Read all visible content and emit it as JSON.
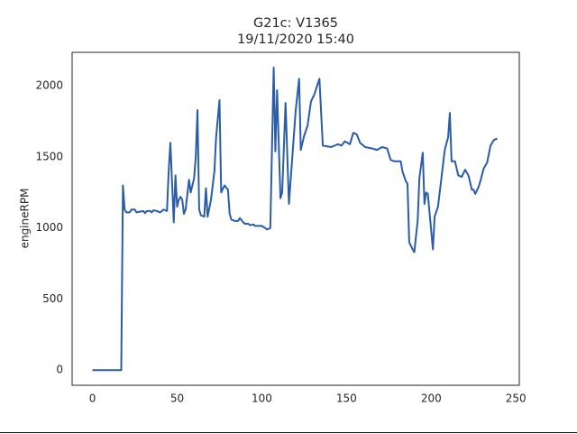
{
  "chart_data": {
    "type": "line",
    "title": "G21c: V1365",
    "subtitle": "19/11/2020 15:40",
    "y_label": "engineRPM",
    "color": "#2a5caa",
    "x": [
      0,
      17,
      18,
      19,
      20,
      22,
      23,
      25,
      26,
      28,
      30,
      31,
      32,
      34,
      35,
      36,
      38,
      40,
      42,
      44,
      45,
      46,
      48,
      49,
      50,
      51,
      52,
      53,
      54,
      55,
      57,
      58,
      60,
      61,
      62,
      63,
      64,
      66,
      67,
      68,
      70,
      72,
      73,
      75,
      76,
      78,
      80,
      81,
      82,
      84,
      86,
      87,
      89,
      90,
      92,
      93,
      95,
      96,
      100,
      102,
      103,
      105,
      107,
      108,
      109,
      111,
      112,
      114,
      116,
      118,
      120,
      122,
      123,
      125,
      127,
      129,
      131,
      134,
      136,
      141,
      143,
      145,
      147,
      149,
      152,
      154,
      156,
      158,
      161,
      165,
      168,
      171,
      174,
      176,
      178,
      182,
      183,
      185,
      186,
      187,
      189,
      190,
      192,
      193,
      195,
      196,
      197,
      198,
      201,
      202,
      204,
      206,
      208,
      210,
      211,
      212,
      214,
      216,
      218,
      220,
      222,
      224,
      225,
      226,
      228,
      229,
      231,
      233,
      235,
      237,
      239
    ],
    "values": [
      0,
      0,
      1300,
      1130,
      1110,
      1110,
      1130,
      1130,
      1110,
      1115,
      1120,
      1105,
      1120,
      1120,
      1110,
      1125,
      1120,
      1110,
      1130,
      1120,
      1400,
      1600,
      1040,
      1370,
      1150,
      1200,
      1220,
      1200,
      1100,
      1130,
      1340,
      1250,
      1350,
      1500,
      1830,
      1130,
      1090,
      1080,
      1280,
      1080,
      1200,
      1400,
      1640,
      1900,
      1250,
      1300,
      1270,
      1100,
      1060,
      1050,
      1050,
      1070,
      1040,
      1030,
      1030,
      1020,
      1025,
      1015,
      1015,
      1000,
      990,
      1000,
      2130,
      1540,
      1970,
      1210,
      1250,
      1880,
      1170,
      1500,
      1830,
      2050,
      1550,
      1650,
      1720,
      1890,
      1940,
      2050,
      1580,
      1570,
      1580,
      1590,
      1580,
      1610,
      1590,
      1670,
      1660,
      1600,
      1570,
      1560,
      1550,
      1570,
      1560,
      1480,
      1470,
      1470,
      1400,
      1330,
      1310,
      900,
      850,
      830,
      1050,
      1350,
      1530,
      1170,
      1250,
      1240,
      850,
      1080,
      1150,
      1350,
      1550,
      1640,
      1810,
      1470,
      1470,
      1370,
      1360,
      1410,
      1370,
      1270,
      1270,
      1240,
      1290,
      1330,
      1420,
      1460,
      1580,
      1620,
      1630
    ],
    "xlim": [
      -12,
      252
    ],
    "ylim": [
      -106.5,
      2236.5
    ],
    "xticks": [
      0,
      50,
      100,
      150,
      200,
      250
    ],
    "yticks": [
      0,
      500,
      1000,
      1500,
      2000
    ]
  }
}
